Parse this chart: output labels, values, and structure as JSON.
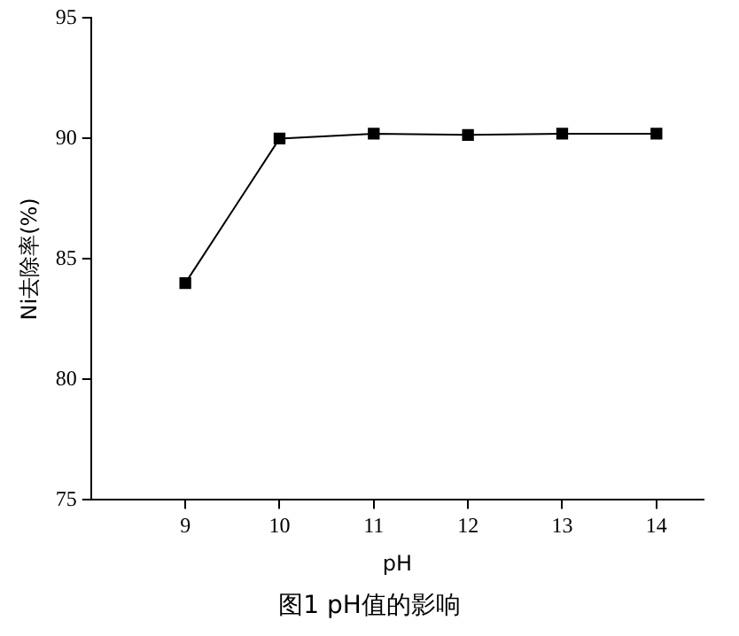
{
  "chart_data": {
    "type": "line",
    "xlabel": "pH",
    "ylabel": "Ni去除率(%)",
    "annotations": [
      "图1  pH值的影响"
    ],
    "x": [
      9,
      10,
      11,
      12,
      13,
      14
    ],
    "series": [
      {
        "color": "#000000",
        "values": [
          84.0,
          90.0,
          90.2,
          90.15,
          90.2,
          90.2
        ]
      }
    ],
    "xlim": [
      8,
      14.5
    ],
    "xticks": [
      9,
      10,
      11,
      12,
      13,
      14
    ],
    "ylim": [
      75,
      95
    ],
    "yticks": [
      75,
      80,
      85,
      90,
      95
    ],
    "marker": "square",
    "line_style": "solid",
    "grid": false,
    "legend": false
  }
}
